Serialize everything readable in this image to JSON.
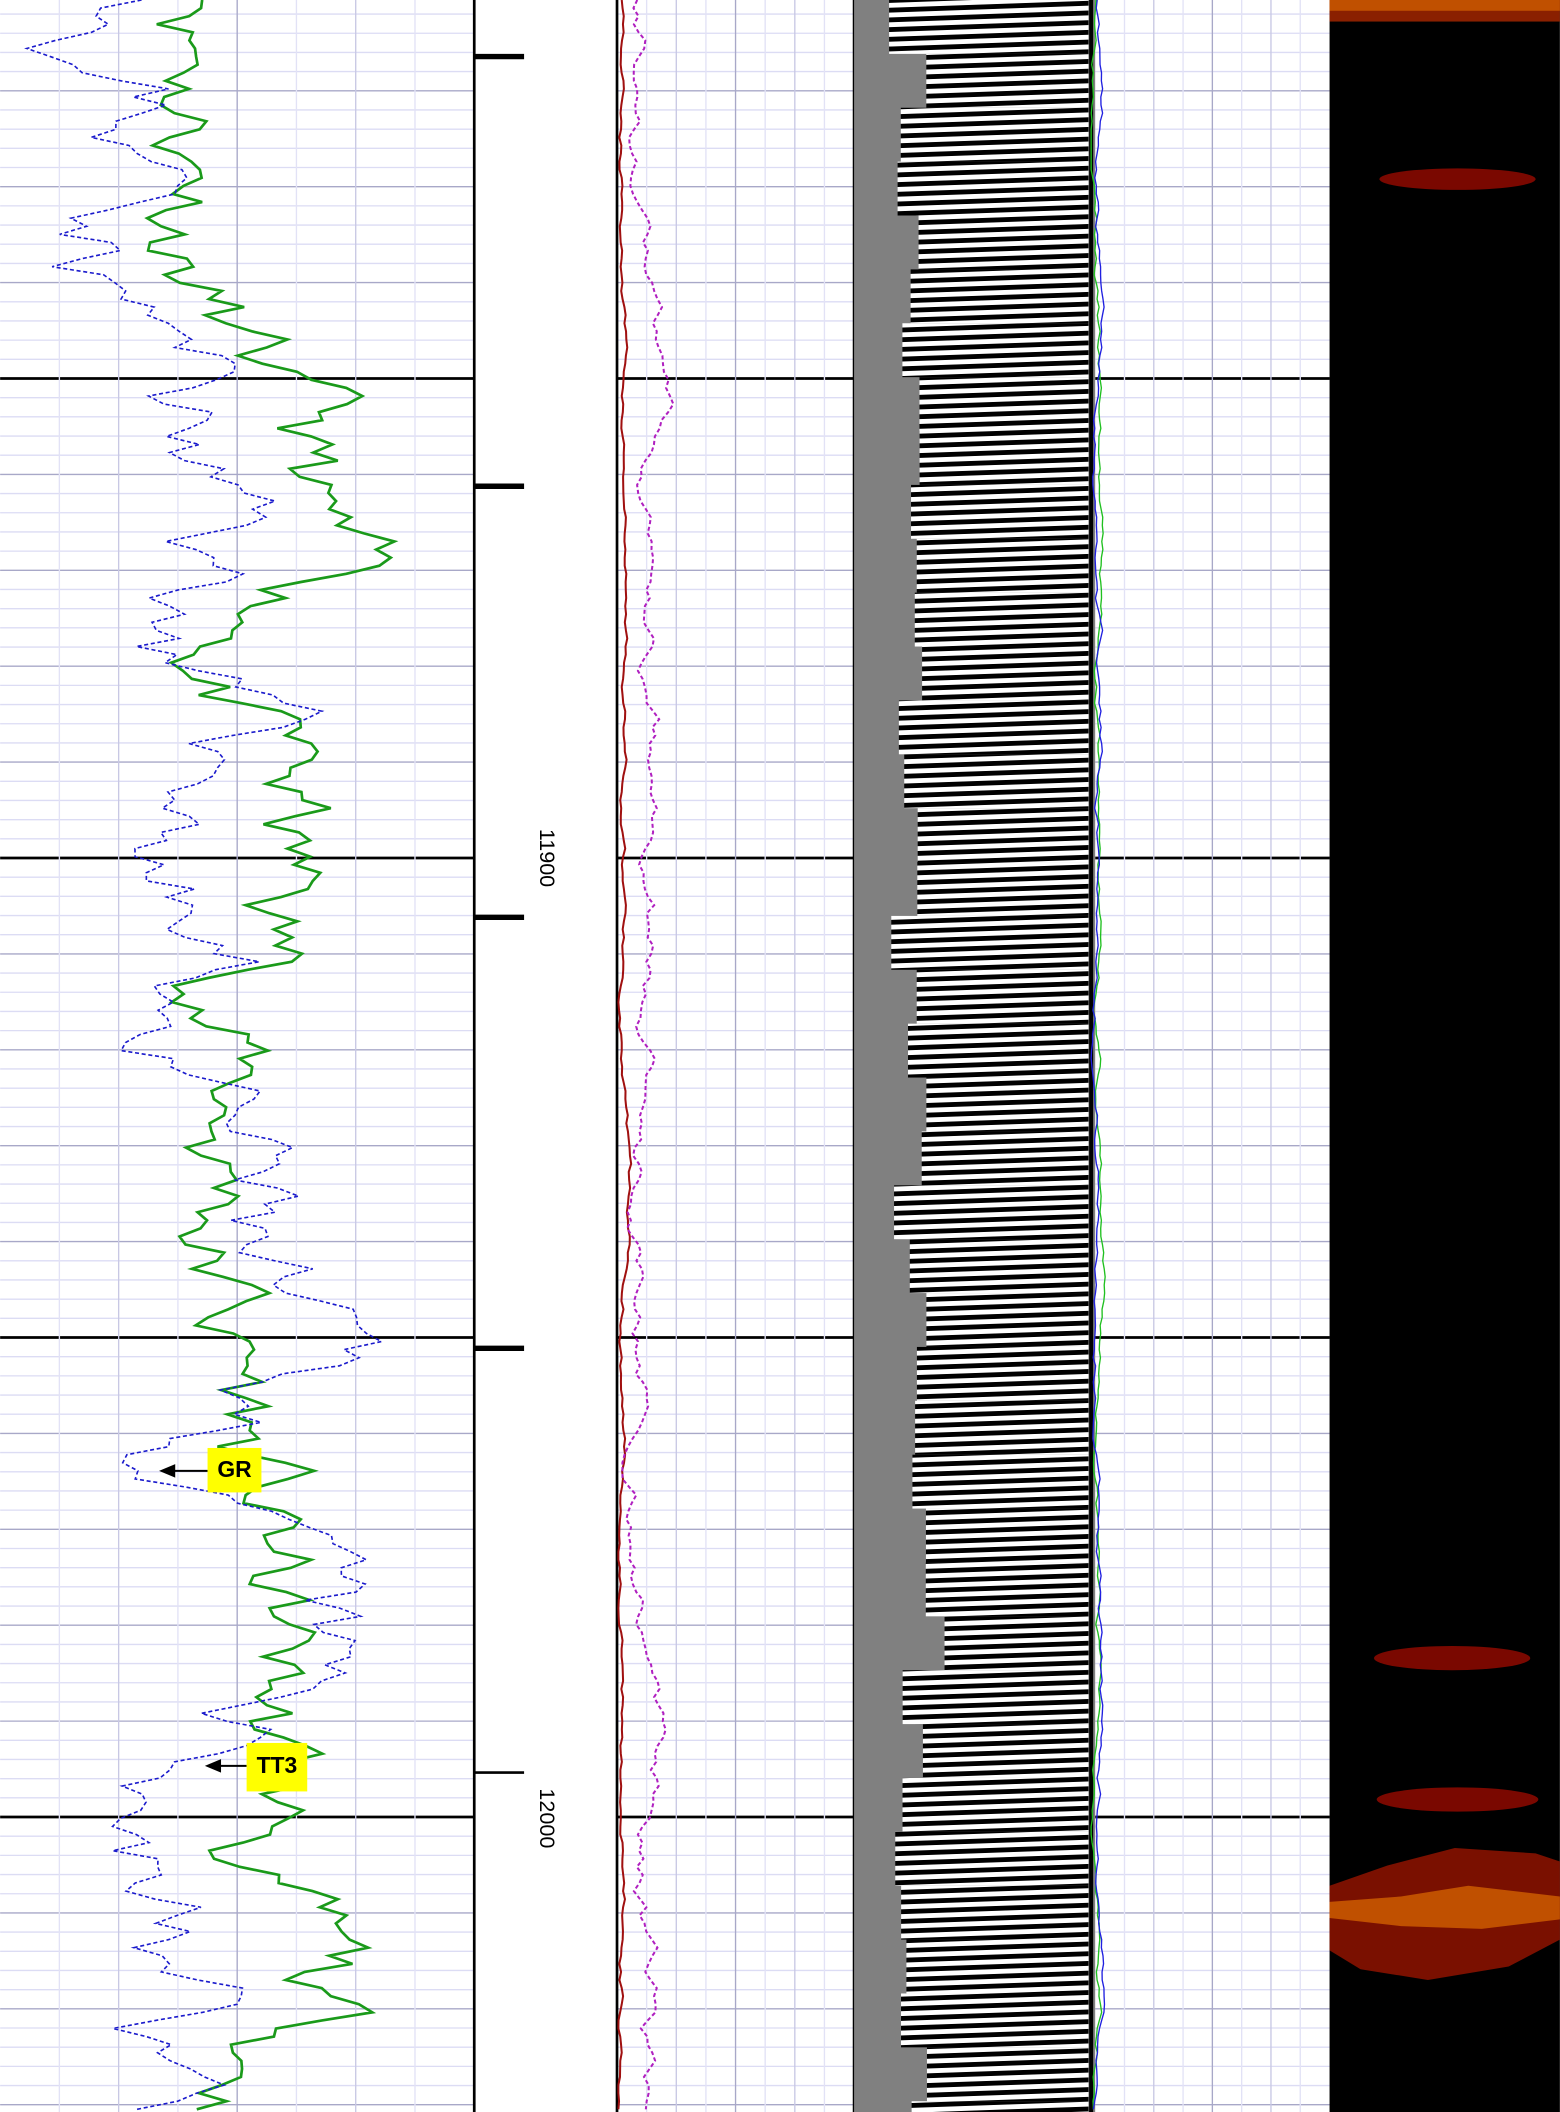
{
  "depth_track": {
    "labels": [
      11900,
      12000
    ]
  },
  "annotations": [
    {
      "label": "GR"
    },
    {
      "label": "TT3"
    }
  ]
}
